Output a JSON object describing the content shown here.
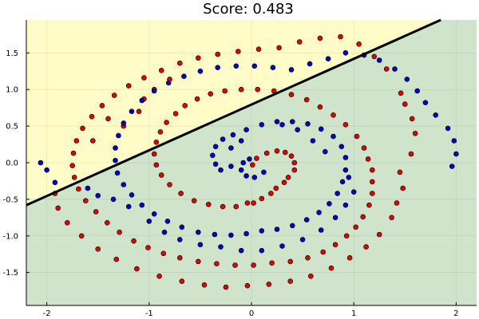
{
  "chart_data": {
    "type": "scatter",
    "title": "Score: 0.483",
    "xlabel": "",
    "ylabel": "",
    "xlim": [
      -2.2,
      2.2
    ],
    "ylim": [
      -1.95,
      1.95
    ],
    "x_ticks": [
      -2,
      -1,
      0,
      1,
      2
    ],
    "x_tick_labels": [
      "-2",
      "-1",
      "0",
      "1",
      "2"
    ],
    "y_ticks": [
      -1.5,
      -1.0,
      -0.5,
      0.0,
      0.5,
      1.0,
      1.5
    ],
    "y_tick_labels": [
      "-1.5",
      "-1.0",
      "-0.5",
      "0.0",
      "0.5",
      "1.0",
      "1.5"
    ],
    "grid": true,
    "legend": "none",
    "decision_boundary": {
      "points": [
        [
          -2.2,
          -0.58
        ],
        [
          1.85,
          1.95
        ]
      ],
      "color": "#000000"
    },
    "regions": [
      {
        "side": "above-left",
        "color": "#fffcc8"
      },
      {
        "side": "below-right",
        "color": "#d0e4cc"
      }
    ],
    "series": [
      {
        "color": "#e00000",
        "values": [
          [
            0.02,
            -0.55
          ],
          [
            0.1,
            -0.49
          ],
          [
            0.19,
            -0.42
          ],
          [
            0.24,
            -0.35
          ],
          [
            0.32,
            -0.27
          ],
          [
            0.36,
            -0.2
          ],
          [
            0.42,
            -0.1
          ],
          [
            0.42,
            0.0
          ],
          [
            0.39,
            0.09
          ],
          [
            0.33,
            0.14
          ],
          [
            0.25,
            0.16
          ],
          [
            0.15,
            0.13
          ],
          [
            0.05,
            0.06
          ],
          [
            0.01,
            -0.03
          ],
          [
            -0.04,
            -0.55
          ],
          [
            -0.15,
            -0.6
          ],
          [
            -0.28,
            -0.6
          ],
          [
            -0.42,
            -0.57
          ],
          [
            -0.56,
            -0.52
          ],
          [
            -0.69,
            -0.42
          ],
          [
            -0.8,
            -0.3
          ],
          [
            -0.88,
            -0.17
          ],
          [
            -0.93,
            -0.03
          ],
          [
            -0.95,
            0.12
          ],
          [
            -0.93,
            0.28
          ],
          [
            -0.89,
            0.42
          ],
          [
            -0.83,
            0.55
          ],
          [
            -0.74,
            0.67
          ],
          [
            -0.65,
            0.78
          ],
          [
            -0.53,
            0.87
          ],
          [
            -0.4,
            0.94
          ],
          [
            -0.26,
            0.98
          ],
          [
            -0.1,
            1.0
          ],
          [
            0.06,
            1.0
          ],
          [
            0.22,
            0.98
          ],
          [
            0.39,
            0.93
          ],
          [
            0.54,
            0.86
          ],
          [
            0.67,
            0.76
          ],
          [
            0.8,
            0.65
          ],
          [
            0.92,
            0.52
          ],
          [
            1.03,
            0.36
          ],
          [
            1.1,
            0.2
          ],
          [
            1.14,
            0.05
          ],
          [
            1.18,
            -0.1
          ],
          [
            1.18,
            -0.26
          ],
          [
            1.18,
            -0.42
          ],
          [
            1.15,
            -0.58
          ],
          [
            1.09,
            -0.74
          ],
          [
            1.02,
            -0.88
          ],
          [
            0.93,
            -1.0
          ],
          [
            0.82,
            -1.12
          ],
          [
            0.7,
            -1.22
          ],
          [
            0.55,
            -1.3
          ],
          [
            0.38,
            -1.35
          ],
          [
            0.2,
            -1.37
          ],
          [
            0.02,
            -1.4
          ],
          [
            -0.16,
            -1.4
          ],
          [
            -0.34,
            -1.38
          ],
          [
            -0.52,
            -1.35
          ],
          [
            -0.7,
            -1.3
          ],
          [
            -0.86,
            -1.24
          ],
          [
            -1.01,
            -1.16
          ],
          [
            -1.15,
            -1.07
          ],
          [
            -1.29,
            -0.95
          ],
          [
            -1.41,
            -0.82
          ],
          [
            -1.52,
            -0.67
          ],
          [
            -1.62,
            -0.52
          ],
          [
            -1.69,
            -0.36
          ],
          [
            -1.73,
            -0.2
          ],
          [
            -1.75,
            -0.04
          ],
          [
            -1.74,
            0.13
          ],
          [
            -1.71,
            0.3
          ],
          [
            -1.65,
            0.47
          ],
          [
            -1.56,
            0.63
          ],
          [
            -1.46,
            0.78
          ],
          [
            -1.34,
            0.92
          ],
          [
            -1.2,
            1.05
          ],
          [
            -1.05,
            1.16
          ],
          [
            -0.88,
            1.26
          ],
          [
            -0.7,
            1.36
          ],
          [
            -0.52,
            1.43
          ],
          [
            -0.33,
            1.48
          ],
          [
            -0.13,
            1.52
          ],
          [
            0.07,
            1.55
          ],
          [
            0.27,
            1.57
          ],
          [
            0.47,
            1.65
          ],
          [
            0.67,
            1.7
          ],
          [
            0.87,
            1.72
          ],
          [
            1.05,
            1.62
          ],
          [
            1.2,
            1.45
          ],
          [
            1.32,
            1.28
          ],
          [
            1.46,
            0.95
          ],
          [
            1.5,
            0.8
          ],
          [
            1.57,
            0.6
          ],
          [
            1.6,
            0.4
          ],
          [
            1.56,
            0.12
          ],
          [
            1.45,
            -0.13
          ],
          [
            1.48,
            -0.35
          ],
          [
            1.42,
            -0.55
          ],
          [
            1.37,
            -0.75
          ],
          [
            1.25,
            -0.98
          ],
          [
            1.12,
            -1.15
          ],
          [
            0.96,
            -1.3
          ],
          [
            0.78,
            -1.44
          ],
          [
            0.58,
            -1.55
          ],
          [
            0.38,
            -1.62
          ],
          [
            0.17,
            -1.66
          ],
          [
            -0.04,
            -1.68
          ],
          [
            -0.25,
            -1.7
          ],
          [
            -0.46,
            -1.67
          ],
          [
            -0.68,
            -1.62
          ],
          [
            -0.9,
            -1.55
          ],
          [
            -1.12,
            -1.45
          ],
          [
            -1.32,
            -1.32
          ],
          [
            -1.5,
            -1.18
          ],
          [
            -1.66,
            -1.0
          ],
          [
            -1.8,
            -0.82
          ],
          [
            -1.89,
            -0.62
          ],
          [
            -1.92,
            -0.42
          ],
          [
            -1.55,
            0.3
          ],
          [
            -1.4,
            0.6
          ],
          [
            -1.25,
            0.5
          ],
          [
            -1.1,
            0.7
          ],
          [
            -1.05,
            0.87
          ],
          [
            -0.95,
            1.0
          ],
          [
            -0.8,
            1.14
          ]
        ]
      },
      {
        "color": "#0000c8",
        "values": [
          [
            -0.02,
            0.05
          ],
          [
            -0.08,
            0.0
          ],
          [
            -0.1,
            -0.1
          ],
          [
            -0.05,
            -0.18
          ],
          [
            0.03,
            -0.2
          ],
          [
            0.12,
            -0.13
          ],
          [
            -0.2,
            -0.05
          ],
          [
            -0.3,
            -0.1
          ],
          [
            -0.35,
            -0.02
          ],
          [
            -0.38,
            0.1
          ],
          [
            -0.35,
            0.22
          ],
          [
            -0.28,
            0.32
          ],
          [
            -0.18,
            0.38
          ],
          [
            -0.05,
            0.45
          ],
          [
            0.1,
            0.52
          ],
          [
            0.25,
            0.56
          ],
          [
            0.4,
            0.56
          ],
          [
            0.55,
            0.53
          ],
          [
            0.68,
            0.46
          ],
          [
            0.8,
            0.36
          ],
          [
            0.88,
            0.22
          ],
          [
            0.92,
            0.07
          ],
          [
            0.92,
            -0.1
          ],
          [
            0.89,
            -0.26
          ],
          [
            0.84,
            -0.42
          ],
          [
            0.76,
            -0.56
          ],
          [
            0.66,
            -0.68
          ],
          [
            0.54,
            -0.78
          ],
          [
            0.4,
            -0.86
          ],
          [
            0.25,
            -0.91
          ],
          [
            0.1,
            -0.93
          ],
          [
            -0.05,
            -0.97
          ],
          [
            -0.2,
            -0.99
          ],
          [
            -0.36,
            -0.98
          ],
          [
            -0.52,
            -0.95
          ],
          [
            -0.68,
            -0.88
          ],
          [
            -0.82,
            -0.8
          ],
          [
            -0.95,
            -0.7
          ],
          [
            -1.07,
            -0.58
          ],
          [
            -1.17,
            -0.44
          ],
          [
            -1.25,
            -0.3
          ],
          [
            -1.31,
            -0.14
          ],
          [
            -1.33,
            0.03
          ],
          [
            -1.33,
            0.2
          ],
          [
            -1.3,
            0.37
          ],
          [
            -1.25,
            0.54
          ],
          [
            -1.17,
            0.7
          ],
          [
            -1.07,
            0.85
          ],
          [
            -0.95,
            0.98
          ],
          [
            -0.81,
            1.09
          ],
          [
            -0.66,
            1.18
          ],
          [
            -0.5,
            1.25
          ],
          [
            -0.33,
            1.3
          ],
          [
            -0.15,
            1.32
          ],
          [
            0.03,
            1.32
          ],
          [
            0.21,
            1.3
          ],
          [
            0.39,
            1.27
          ],
          [
            0.57,
            1.35
          ],
          [
            0.75,
            1.42
          ],
          [
            0.92,
            1.5
          ],
          [
            1.1,
            1.47
          ],
          [
            1.25,
            1.4
          ],
          [
            1.4,
            1.28
          ],
          [
            1.52,
            1.14
          ],
          [
            1.62,
            0.98
          ],
          [
            1.7,
            0.82
          ],
          [
            1.8,
            0.65
          ],
          [
            1.92,
            0.47
          ],
          [
            1.98,
            0.3
          ],
          [
            2.0,
            0.12
          ],
          [
            1.96,
            -0.05
          ],
          [
            -2.06,
            0.0
          ],
          [
            -2.0,
            -0.1
          ],
          [
            -1.92,
            -0.27
          ],
          [
            -1.6,
            -0.35
          ],
          [
            -1.5,
            -0.45
          ],
          [
            -1.35,
            -0.5
          ],
          [
            -1.2,
            -0.6
          ],
          [
            -1.0,
            -0.8
          ],
          [
            -0.85,
            -0.95
          ],
          [
            -0.7,
            -1.05
          ],
          [
            -0.5,
            -1.12
          ],
          [
            -0.3,
            -1.15
          ],
          [
            -0.1,
            -1.2
          ],
          [
            0.1,
            -1.2
          ],
          [
            0.3,
            -1.14
          ],
          [
            0.5,
            -1.05
          ],
          [
            0.68,
            -0.92
          ],
          [
            0.82,
            -0.75
          ],
          [
            0.92,
            -0.58
          ],
          [
            1.0,
            -0.4
          ],
          [
            0.95,
            -0.2
          ],
          [
            0.72,
            0.15
          ],
          [
            0.6,
            0.3
          ],
          [
            0.45,
            0.45
          ],
          [
            0.3,
            0.52
          ],
          [
            -0.1,
            0.3
          ],
          [
            -0.2,
            0.2
          ]
        ]
      }
    ]
  }
}
